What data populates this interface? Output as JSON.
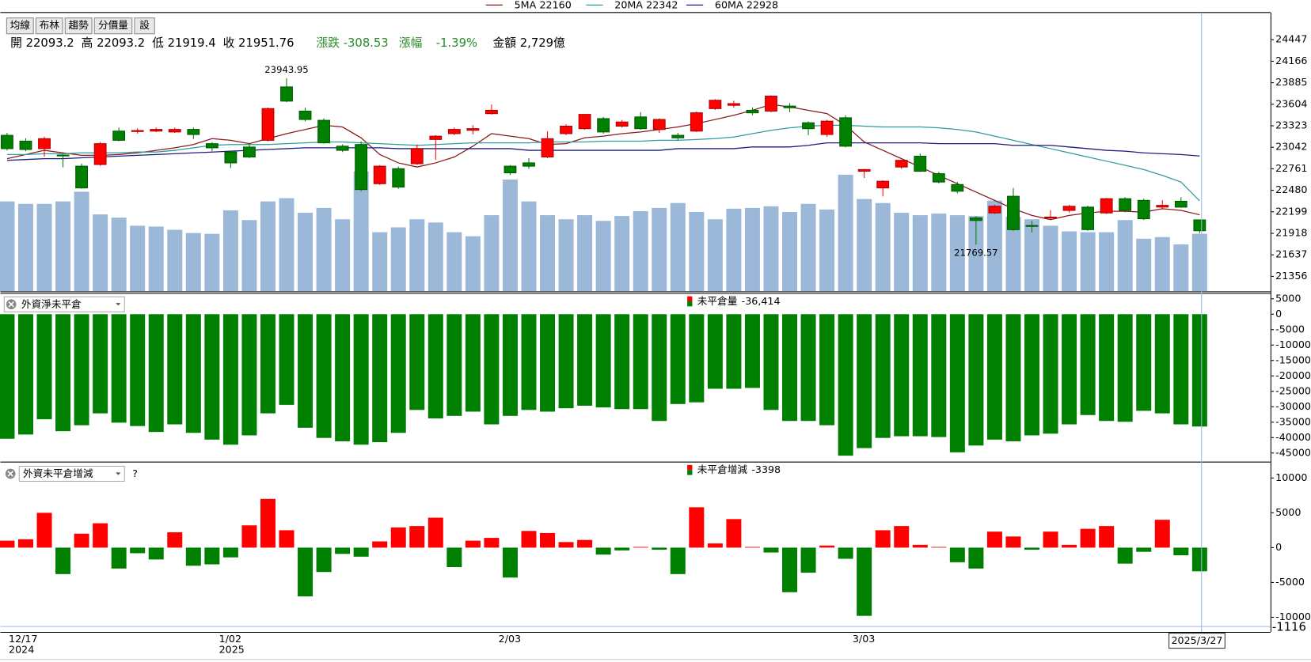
{
  "toolbar": [
    "均線",
    "布林",
    "趨勢",
    "分價量",
    "設"
  ],
  "quote": {
    "open": "開",
    "high": "高",
    "low": "低",
    "close": "收",
    "change": "漲跌",
    "change_value": -308.53,
    "change_pct": "漲幅",
    "change_pct_value": {
      "value": -1.39,
      "label": "-1.39%"
    },
    "amount": "金額",
    "amount_value": {
      "value": 2729,
      "label": "2,729億"
    }
  },
  "chart_data": [
    {
      "type": "candlestick",
      "categories": [
        "12/17",
        null,
        null,
        null,
        null,
        null,
        null,
        null,
        null,
        null,
        null,
        null,
        "1/02",
        null,
        null,
        null,
        null,
        null,
        null,
        null,
        null,
        null,
        null,
        null,
        null,
        null,
        null,
        "2/03",
        null,
        null,
        null,
        null,
        null,
        null,
        null,
        null,
        null,
        null,
        null,
        null,
        null,
        null,
        null,
        null,
        null,
        null,
        "3/03",
        null,
        null,
        null,
        null,
        null,
        null,
        null,
        null,
        null,
        null,
        null,
        null,
        null,
        null,
        null,
        null,
        null,
        null
      ],
      "category_years": [
        "2024",
        null,
        null,
        null,
        null,
        null,
        null,
        null,
        null,
        null,
        null,
        null,
        "2025",
        null,
        null,
        null,
        null,
        null,
        null,
        null,
        null,
        null,
        null,
        null,
        null,
        null,
        null,
        null,
        null,
        null,
        null,
        null,
        null,
        null,
        null,
        null,
        null,
        null,
        null,
        null,
        null,
        null,
        null,
        null,
        null,
        null,
        null,
        null,
        null,
        null,
        null,
        null,
        null,
        null,
        null,
        null,
        null,
        null,
        null,
        null,
        null,
        null,
        null,
        null,
        null
      ],
      "cursor_date": "2025/3/27",
      "up_color": "#ff0000",
      "down_color": "#008000",
      "open": [
        23198,
        23122,
        23024,
        22940,
        22795,
        22817,
        23253,
        23248,
        23253,
        23242,
        23275,
        23089,
        22980,
        23045,
        23133,
        23830,
        23514,
        23394,
        23056,
        23078,
        22566,
        22762,
        22827,
        23144,
        23220,
        23264,
        23481,
        22795,
        22838,
        22915,
        23220,
        23285,
        23416,
        23318,
        23438,
        23274,
        23198,
        23253,
        23547,
        23590,
        23525,
        23514,
        23580,
        23362,
        23209,
        23427,
        22729,
        22511,
        22784,
        22925,
        22697,
        22555,
        22119,
        22184,
        22402,
        22020,
        22125,
        22217,
        22260,
        22184,
        22370,
        22348,
        22261,
        22337,
        22093.2
      ],
      "high": [
        23230,
        23160,
        23180,
        22950,
        22830,
        23110,
        23300,
        23290,
        23300,
        23300,
        23300,
        23110,
        23000,
        23090,
        23560,
        23943.95,
        23560,
        23420,
        23080,
        23120,
        22810,
        22790,
        23080,
        23200,
        23300,
        23330,
        23600,
        22810,
        22900,
        23250,
        23340,
        23480,
        23440,
        23400,
        23500,
        23420,
        23230,
        23510,
        23670,
        23650,
        23560,
        23720,
        23620,
        23380,
        23400,
        23460,
        22760,
        22610,
        22880,
        22960,
        22720,
        22590,
        22140,
        22290,
        22510,
        22080,
        22220,
        22290,
        22280,
        22380,
        22390,
        22370,
        22350,
        22390,
        22093.2
      ],
      "low": [
        23000,
        22990,
        22920,
        22780,
        22500,
        22800,
        23120,
        23220,
        23240,
        23230,
        23150,
        22990,
        22770,
        22900,
        23120,
        23630,
        23380,
        23090,
        22980,
        22470,
        22550,
        22500,
        22810,
        22880,
        23200,
        23210,
        23470,
        22680,
        22760,
        22900,
        23200,
        23270,
        23220,
        23300,
        23270,
        23230,
        23130,
        23240,
        23530,
        23560,
        23460,
        23500,
        23500,
        23200,
        23180,
        23040,
        22640,
        22400,
        22760,
        22720,
        22570,
        22440,
        21769.57,
        22170,
        21950,
        21930,
        22100,
        22190,
        21950,
        22170,
        22190,
        22090,
        22230,
        22250,
        21919.4
      ],
      "close": [
        23024,
        23013,
        23154,
        22935,
        22511,
        23089,
        23133,
        23260,
        23275,
        23275,
        23209,
        23035,
        22838,
        22915,
        23547,
        23645,
        23405,
        23100,
        23002,
        22490,
        22795,
        22522,
        23024,
        23187,
        23275,
        23285,
        23525,
        22708,
        22795,
        23154,
        23318,
        23471,
        23242,
        23372,
        23285,
        23405,
        23165,
        23492,
        23656,
        23612,
        23492,
        23710,
        23558,
        23285,
        23383,
        23056,
        22751,
        22598,
        22871,
        22729,
        22588,
        22468,
        22086,
        22272,
        21966,
        22010,
        22130,
        22271,
        21966,
        22370,
        22217,
        22108,
        22283,
        22260.29,
        21951.76
      ],
      "volume": {
        "color": "#9bb8d9",
        "values": [
          4262,
          4147,
          4147,
          4262,
          4723,
          3648,
          3494,
          3110,
          3072,
          2918,
          2765,
          2726,
          3840,
          3379,
          4262,
          4416,
          3725,
          3955,
          3418,
          5683,
          2803,
          3034,
          3418,
          3264,
          2803,
          2611,
          3610,
          5299,
          4262,
          3610,
          3418,
          3610,
          3341,
          3571,
          3802,
          3955,
          4186,
          3763,
          3418,
          3917,
          3955,
          4032,
          3763,
          4147,
          3878,
          5530,
          4378,
          4186,
          3725,
          3610,
          3686,
          3610,
          3571,
          4301,
          3533,
          3418,
          3110,
          2842,
          2803,
          2803,
          3379,
          2496,
          2573,
          2227,
          2729
        ]
      },
      "lines": [
        {
          "name": "5MA",
          "color": "#8b1a1a",
          "values": [
            22893,
            22947,
            23002,
            22969,
            22937,
            22937,
            22947,
            22969,
            23002,
            23035,
            23078,
            23155,
            23133,
            23089,
            23155,
            23220,
            23274,
            23329,
            23307,
            23165,
            22947,
            22838,
            22784,
            22838,
            22915,
            23056,
            23220,
            23187,
            23155,
            23078,
            23089,
            23165,
            23187,
            23220,
            23242,
            23274,
            23307,
            23351,
            23405,
            23460,
            23525,
            23601,
            23569,
            23525,
            23482,
            23329,
            23111,
            23002,
            22893,
            22784,
            22675,
            22566,
            22457,
            22348,
            22239,
            22152,
            22097,
            22152,
            22184,
            22206,
            22206,
            22195,
            22239,
            22217,
            22160
          ]
        },
        {
          "name": "20MA",
          "color": "#2e9c9c",
          "values": [
            22947,
            22947,
            22958,
            22958,
            22969,
            22969,
            22969,
            22980,
            22980,
            23002,
            23035,
            23067,
            23078,
            23078,
            23078,
            23089,
            23100,
            23111,
            23111,
            23100,
            23089,
            23078,
            23067,
            23078,
            23089,
            23100,
            23100,
            23100,
            23100,
            23111,
            23111,
            23111,
            23122,
            23122,
            23122,
            23133,
            23133,
            23144,
            23155,
            23176,
            23220,
            23264,
            23296,
            23318,
            23329,
            23329,
            23318,
            23307,
            23307,
            23307,
            23296,
            23274,
            23242,
            23187,
            23133,
            23078,
            23024,
            22969,
            22915,
            22860,
            22806,
            22751,
            22675,
            22588,
            22342
          ]
        },
        {
          "name": "60MA",
          "color": "#1c1c80",
          "values": [
            22871,
            22882,
            22893,
            22893,
            22904,
            22915,
            22926,
            22937,
            22947,
            22958,
            22969,
            22980,
            22991,
            23002,
            23013,
            23024,
            23035,
            23035,
            23035,
            23035,
            23035,
            23024,
            23024,
            23024,
            23024,
            23024,
            23024,
            23024,
            23002,
            23002,
            23002,
            23002,
            23002,
            23002,
            23002,
            23002,
            23024,
            23024,
            23024,
            23024,
            23046,
            23046,
            23046,
            23067,
            23100,
            23100,
            23100,
            23100,
            23100,
            23100,
            23089,
            23089,
            23089,
            23089,
            23067,
            23067,
            23067,
            23046,
            23024,
            23002,
            22991,
            22969,
            22958,
            22947,
            22928
          ]
        }
      ],
      "ylim": [
        21160,
        24802
      ],
      "yticks": [
        21356,
        21637,
        21918,
        22199,
        22480,
        22761,
        23042,
        23323,
        23604,
        23885,
        24166,
        24447
      ]
    },
    {
      "type": "bar",
      "selector": "外資淨未平倉",
      "series": [
        {
          "name": "未平倉量",
          "color": "#008000",
          "values": [
            -40380,
            -39010,
            -34060,
            -37910,
            -35990,
            -32140,
            -35160,
            -36260,
            -38180,
            -35710,
            -38460,
            -40660,
            -42300,
            -39280,
            -32140,
            -29390,
            -36810,
            -40110,
            -41200,
            -42300,
            -41480,
            -38460,
            -31040,
            -33790,
            -32960,
            -31590,
            -35710,
            -32960,
            -31040,
            -31590,
            -30490,
            -29670,
            -30220,
            -30770,
            -30770,
            -34610,
            -29120,
            -28570,
            -24170,
            -24170,
            -23900,
            -31040,
            -34610,
            -34610,
            -35990,
            -45870,
            -43400,
            -40110,
            -39560,
            -39560,
            -39830,
            -44780,
            -42580,
            -40660,
            -41200,
            -39280,
            -38730,
            -35710,
            -32690,
            -34610,
            -34880,
            -31320,
            -32140,
            -35710,
            -36414
          ],
          "value_labels": [
            null,
            null,
            null,
            null,
            null,
            null,
            null,
            null,
            null,
            null,
            null,
            null,
            null,
            null,
            null,
            null,
            null,
            null,
            null,
            null,
            null,
            null,
            null,
            null,
            null,
            null,
            null,
            null,
            null,
            null,
            null,
            null,
            null,
            null,
            null,
            null,
            null,
            null,
            null,
            null,
            null,
            null,
            null,
            null,
            null,
            null,
            null,
            null,
            null,
            null,
            null,
            null,
            null,
            null,
            null,
            null,
            null,
            null,
            null,
            null,
            null,
            null,
            null,
            null,
            "-36,414"
          ]
        }
      ],
      "ylim": [
        -47800,
        6870
      ],
      "yticks": [
        5000,
        0,
        -5000,
        -10000,
        -15000,
        -20000,
        -25000,
        -30000,
        -35000,
        -40000,
        -45000
      ]
    },
    {
      "type": "bar",
      "selector": "外資未平倉增減",
      "help": "?",
      "cursor_label": "-1116",
      "series": [
        {
          "name": "未平倉增減",
          "up_color": "#ff0000",
          "down_color": "#008000",
          "values": [
            1000,
            1200,
            5000,
            -3800,
            2000,
            3500,
            -3000,
            -800,
            -1700,
            2200,
            -2600,
            -2400,
            -1400,
            3200,
            7000,
            2500,
            -7000,
            -3500,
            -900,
            -1300,
            900,
            2900,
            3100,
            4300,
            -2800,
            1000,
            1400,
            -4300,
            2400,
            2100,
            800,
            1100,
            -1000,
            -400,
            100,
            -300,
            -3800,
            5800,
            600,
            4100,
            100,
            -700,
            -6400,
            -3600,
            300,
            -1600,
            -9800,
            2500,
            3100,
            400,
            100,
            -2100,
            -3000,
            2300,
            1600,
            -300,
            2300,
            400,
            2700,
            3100,
            -2300,
            -600,
            4000,
            -1100,
            -3398
          ]
        }
      ],
      "ylim": [
        -12110,
        12350
      ],
      "yticks": [
        10000,
        5000,
        0,
        -5000,
        -10000
      ]
    }
  ]
}
